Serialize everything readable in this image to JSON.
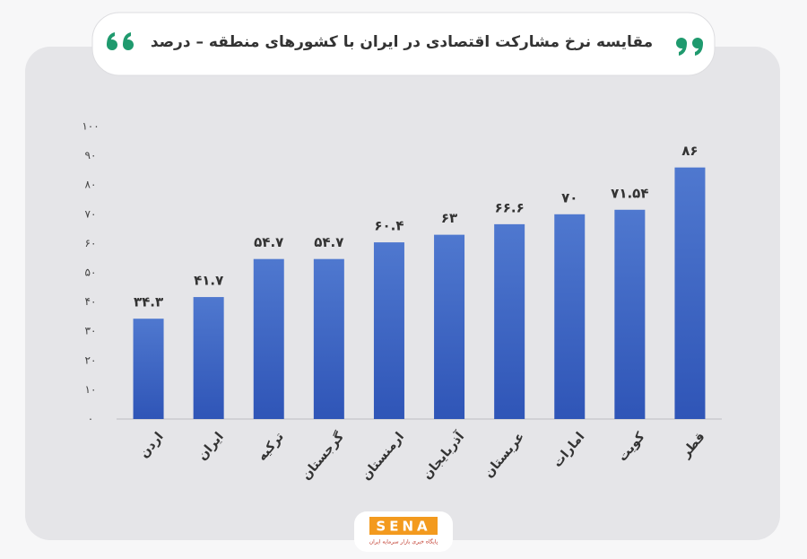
{
  "chart_data": {
    "type": "bar",
    "title": "مقایسه نرخ مشارکت اقتصادی در ایران با کشورهای منطقه – درصد",
    "categories": [
      "اردن",
      "ایران",
      "ترکیه",
      "گرجستان",
      "ارمنستان",
      "آذربایجان",
      "عربستان",
      "امارات",
      "کویت",
      "قطر"
    ],
    "values": [
      34.3,
      41.7,
      54.7,
      54.7,
      60.4,
      63,
      66.6,
      70,
      71.54,
      86
    ],
    "value_labels": [
      "۳۴.۳",
      "۴۱.۷",
      "۵۴.۷",
      "۵۴.۷",
      "۶۰.۴",
      "۶۳",
      "۶۶.۶",
      "۷۰",
      "۷۱.۵۴",
      "۸۶"
    ],
    "color": "#3f65c2",
    "ylim": [
      0,
      100
    ],
    "yticks": [
      {
        "value": 0,
        "label": "۰"
      },
      {
        "value": 10,
        "label": "۱۰"
      },
      {
        "value": 20,
        "label": "۲۰"
      },
      {
        "value": 30,
        "label": "۳۰"
      },
      {
        "value": 40,
        "label": "۴۰"
      },
      {
        "value": 50,
        "label": "۵۰"
      },
      {
        "value": 60,
        "label": "۶۰"
      },
      {
        "value": 70,
        "label": "۷۰"
      },
      {
        "value": 80,
        "label": "۸۰"
      },
      {
        "value": 90,
        "label": "۹۰"
      },
      {
        "value": 100,
        "label": "۱۰۰"
      }
    ],
    "grid": false,
    "logo": "SENA",
    "logo_subtitle": "پایگاه خبری بازار سرمایه ایران"
  }
}
